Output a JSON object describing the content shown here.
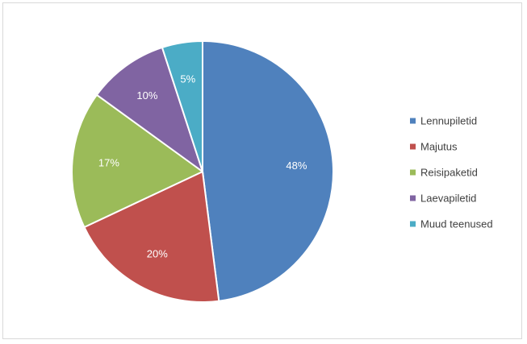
{
  "chart_data": {
    "type": "pie",
    "categories": [
      "Lennupiletid",
      "Majutus",
      "Reisipaketid",
      "Laevapiletid",
      "Muud teenused"
    ],
    "values": [
      48,
      20,
      17,
      10,
      5
    ],
    "labels": [
      "48%",
      "20%",
      "17%",
      "10%",
      "5%"
    ],
    "colors": [
      "#4f81bd",
      "#c0504d",
      "#9bbb59",
      "#8064a2",
      "#4bacc6"
    ],
    "legend_position": "right"
  }
}
